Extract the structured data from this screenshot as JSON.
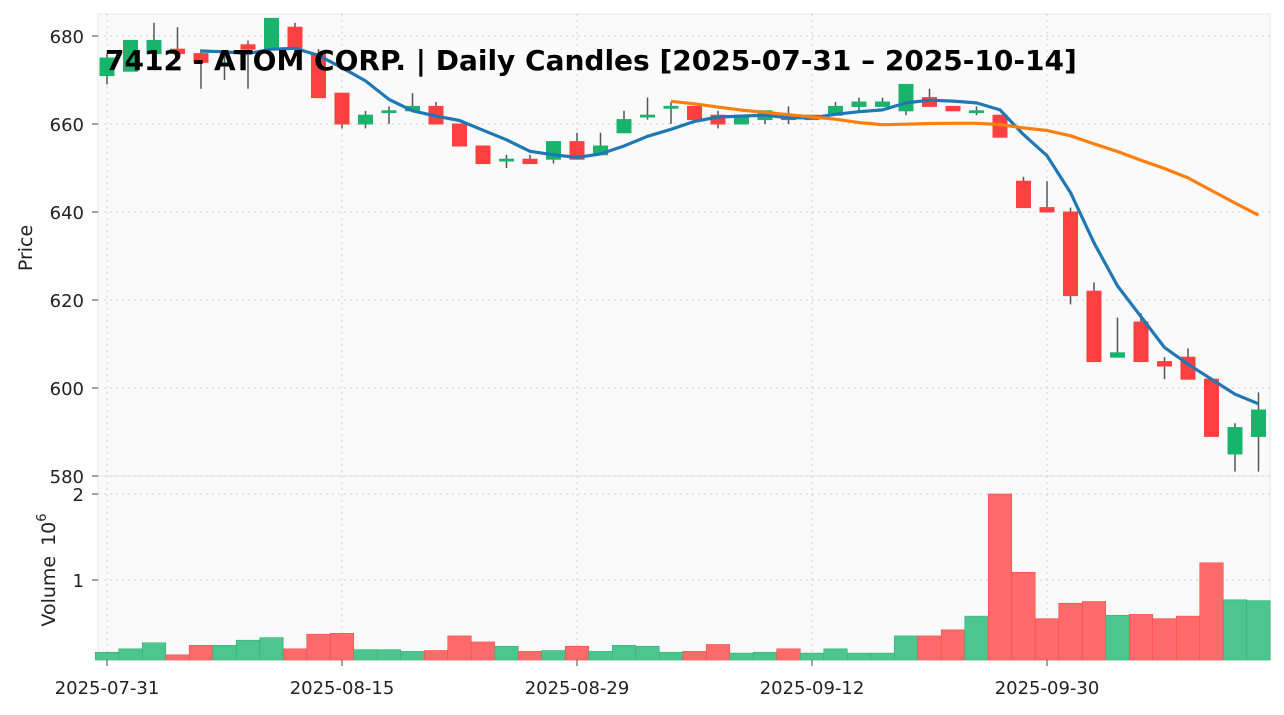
{
  "chart_data": {
    "type": "candlestick",
    "title": "7412 - ATOM CORP. | Daily Candles [2025-07-31 – 2025-10-14]",
    "ylabel": "Price",
    "volume_label": "Volume",
    "volume_multiplier_label": "10",
    "volume_multiplier_exp": "6",
    "ylim": [
      579,
      685
    ],
    "volume_ylim": [
      0,
      2.05
    ],
    "yticks": [
      "580",
      "600",
      "620",
      "640",
      "660",
      "680"
    ],
    "volume_yticks": [
      "1",
      "2"
    ],
    "xticks": [
      {
        "index": 0,
        "label": "2025-07-31"
      },
      {
        "index": 10,
        "label": "2025-08-15"
      },
      {
        "index": 20,
        "label": "2025-08-29"
      },
      {
        "index": 30,
        "label": "2025-09-12"
      },
      {
        "index": 40,
        "label": "2025-09-30"
      }
    ],
    "grid": true,
    "moving_averages": [
      {
        "period": 5,
        "color": "#1f77b4"
      },
      {
        "period": 25,
        "color": "#ff7f0e"
      }
    ],
    "colors": {
      "up": "#18b46c",
      "down": "#ff4040",
      "vol_up": "#4cc58e",
      "vol_down": "#ff6b6b"
    },
    "ohlc": [
      [
        671,
        676,
        669,
        675
      ],
      [
        672,
        679,
        672,
        679
      ],
      [
        676,
        683,
        676,
        679
      ],
      [
        677,
        682,
        675,
        676
      ],
      [
        676,
        677,
        668,
        674
      ],
      [
        674,
        676,
        670,
        674
      ],
      [
        678,
        679,
        668,
        677
      ],
      [
        677,
        684,
        677,
        684
      ],
      [
        682,
        683,
        676,
        677
      ],
      [
        676,
        677,
        666,
        666
      ],
      [
        667,
        667,
        659,
        660
      ],
      [
        660,
        663,
        659,
        662
      ],
      [
        663,
        664,
        660,
        663
      ],
      [
        663,
        667,
        663,
        664
      ],
      [
        664,
        665,
        660,
        660
      ],
      [
        660,
        660,
        655,
        655
      ],
      [
        655,
        655,
        651,
        651
      ],
      [
        652,
        653,
        650,
        652
      ],
      [
        652,
        653,
        651,
        651
      ],
      [
        652,
        656,
        651,
        656
      ],
      [
        656,
        658,
        652,
        652
      ],
      [
        653,
        658,
        653,
        655
      ],
      [
        658,
        663,
        658,
        661
      ],
      [
        662,
        666,
        661,
        662
      ],
      [
        664,
        665,
        660,
        664
      ],
      [
        664,
        664,
        661,
        661
      ],
      [
        662,
        663,
        659,
        660
      ],
      [
        660,
        662,
        660,
        662
      ],
      [
        661,
        663,
        660,
        663
      ],
      [
        662,
        664,
        660,
        661
      ],
      [
        662,
        662,
        661,
        661
      ],
      [
        662,
        665,
        662,
        664
      ],
      [
        664,
        666,
        663,
        665
      ],
      [
        664,
        666,
        664,
        665
      ],
      [
        663,
        669,
        662,
        669
      ],
      [
        666,
        668,
        664,
        664
      ],
      [
        664,
        664,
        663,
        663
      ],
      [
        663,
        664,
        662,
        663
      ],
      [
        662,
        662,
        657,
        657
      ],
      [
        647,
        648,
        641,
        641
      ],
      [
        641,
        647,
        640,
        640
      ],
      [
        640,
        641,
        619,
        621
      ],
      [
        622,
        624,
        606,
        606
      ],
      [
        607,
        616,
        607,
        608
      ],
      [
        615,
        617,
        606,
        606
      ],
      [
        606,
        607,
        602,
        605
      ],
      [
        607,
        609,
        602,
        602
      ],
      [
        602,
        602,
        589,
        589
      ],
      [
        585,
        592,
        581,
        591
      ],
      [
        589,
        599,
        581,
        595
      ]
    ],
    "volume_millions": [
      0.16,
      0.2,
      0.27,
      0.13,
      0.24,
      0.24,
      0.3,
      0.33,
      0.2,
      0.37,
      0.38,
      0.19,
      0.19,
      0.17,
      0.18,
      0.35,
      0.28,
      0.23,
      0.17,
      0.18,
      0.23,
      0.17,
      0.24,
      0.23,
      0.16,
      0.17,
      0.25,
      0.15,
      0.16,
      0.2,
      0.15,
      0.2,
      0.15,
      0.15,
      0.35,
      0.35,
      0.42,
      0.58,
      2.0,
      1.09,
      0.55,
      0.73,
      0.75,
      0.59,
      0.6,
      0.55,
      0.58,
      1.2,
      0.77,
      0.76
    ]
  }
}
